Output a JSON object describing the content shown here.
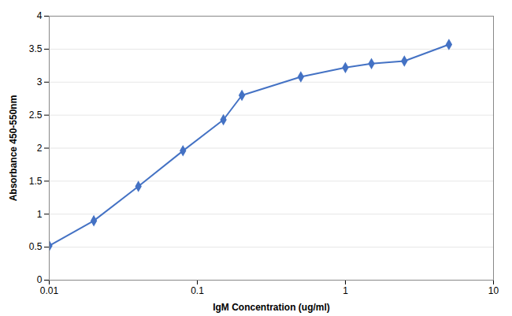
{
  "chart_data": {
    "type": "line",
    "x": [
      0.01,
      0.02,
      0.04,
      0.08,
      0.15,
      0.2,
      0.5,
      1.0,
      1.5,
      2.5,
      5.0
    ],
    "values": [
      0.52,
      0.9,
      1.42,
      1.96,
      2.43,
      2.8,
      3.08,
      3.22,
      3.28,
      3.32,
      3.57
    ],
    "xlabel": "IgM Concentration (ug/ml)",
    "ylabel": "Absorbance 450-550nm",
    "xlim": [
      0.01,
      10
    ],
    "ylim": [
      0,
      4.0
    ],
    "xticks": [
      0.01,
      0.1,
      1,
      10
    ],
    "yticks": [
      0,
      0.5,
      1.0,
      1.5,
      2.0,
      2.5,
      3.0,
      3.5,
      4.0
    ],
    "log": "x",
    "grid": "y",
    "color": "#4472C4",
    "marker": "diamond"
  }
}
